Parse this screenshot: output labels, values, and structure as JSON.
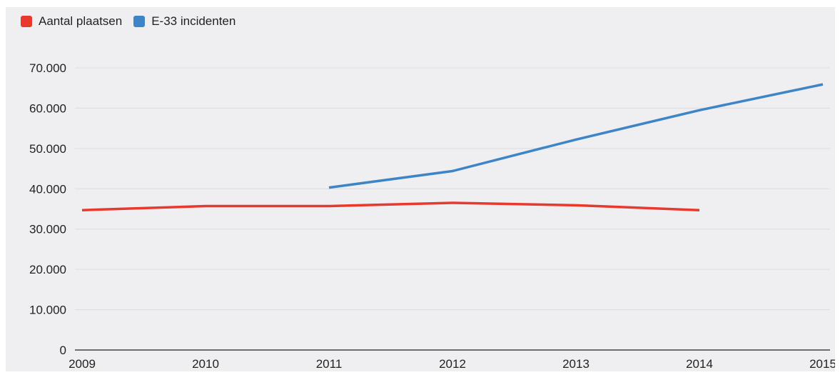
{
  "chart_data": {
    "type": "line",
    "categories": [
      "2009",
      "2010",
      "2011",
      "2012",
      "2013",
      "2014",
      "2015"
    ],
    "series": [
      {
        "name": "Aantal plaatsen",
        "color": "#e8392f",
        "values": [
          34700,
          35700,
          35700,
          36500,
          35900,
          34700,
          null
        ]
      },
      {
        "name": "E-33 incidenten",
        "color": "#3d85c6",
        "values": [
          null,
          null,
          40300,
          44400,
          52200,
          59500,
          65900
        ]
      }
    ],
    "y_ticks": [
      "0",
      "10.000",
      "20.000",
      "30.000",
      "40.000",
      "50.000",
      "60.000",
      "70.000"
    ],
    "ylim": [
      0,
      70000
    ],
    "grid": true,
    "legend_position": "top-left"
  }
}
